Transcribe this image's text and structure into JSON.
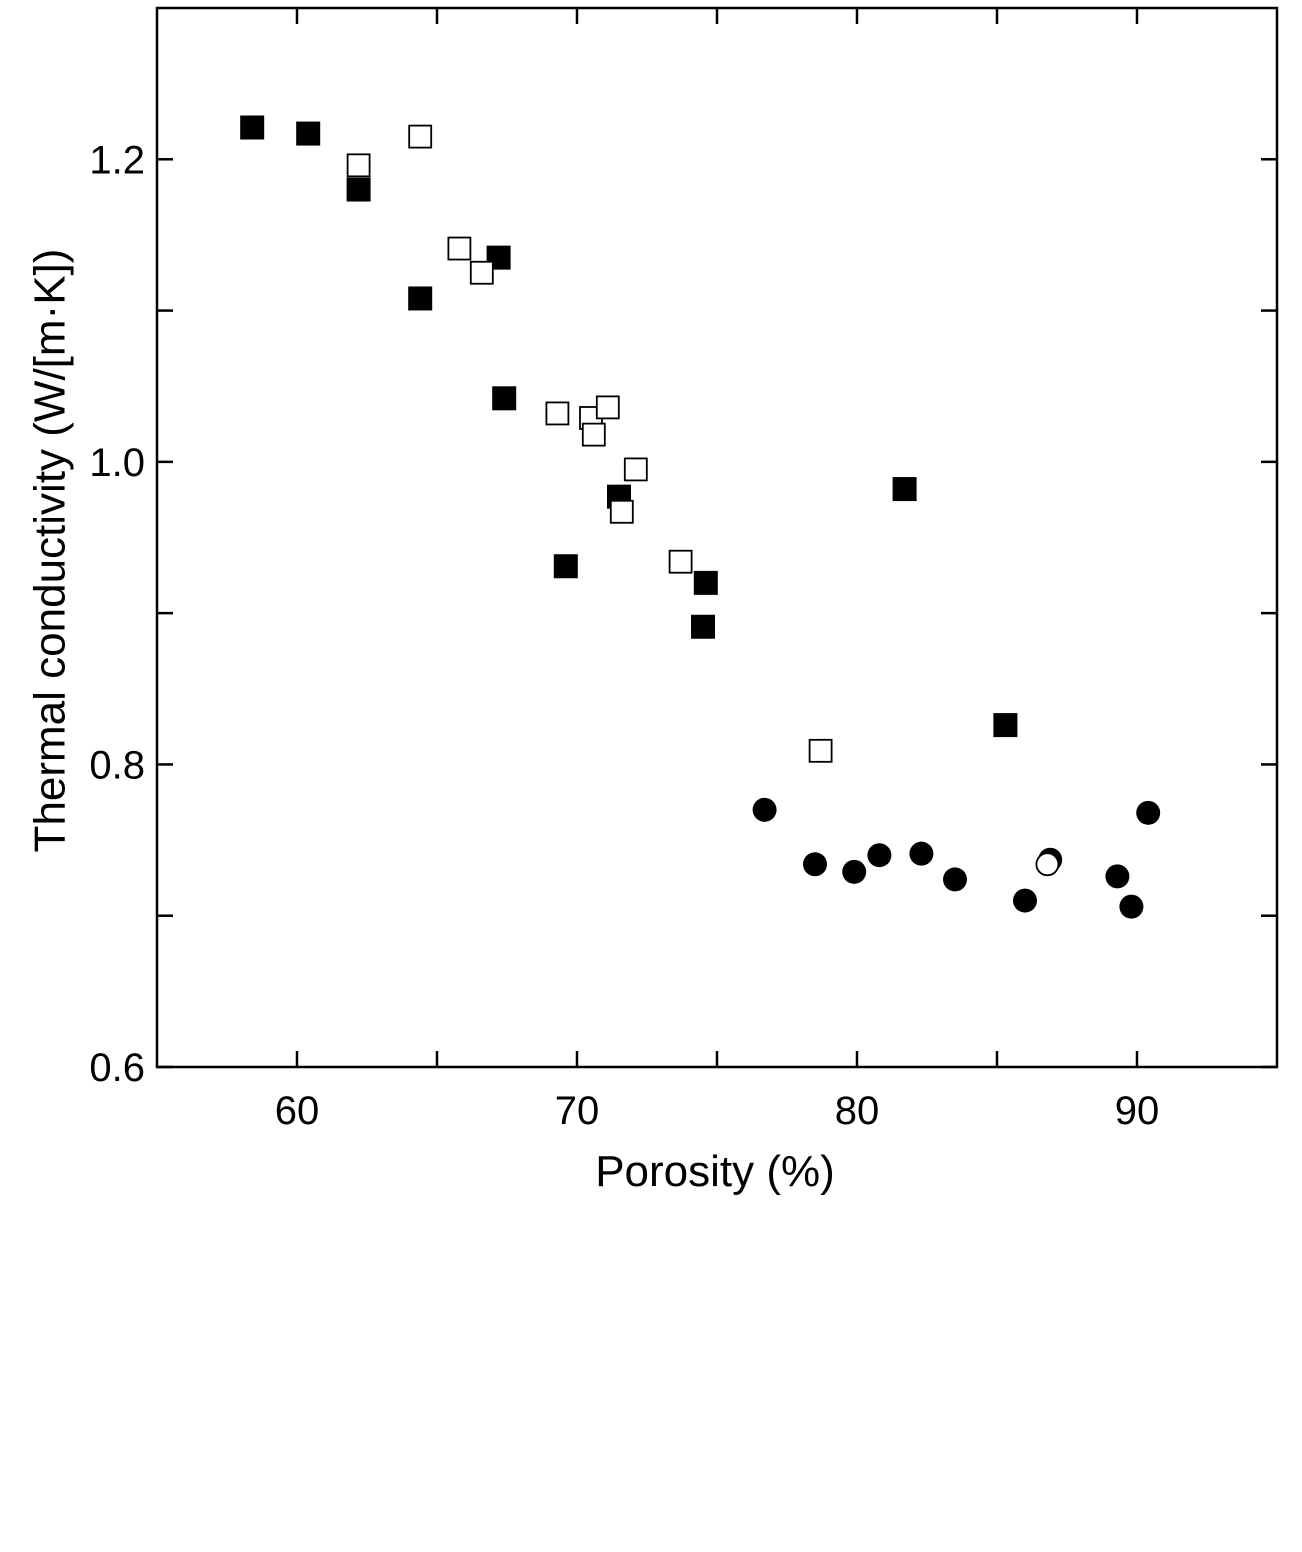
{
  "chart_data": {
    "type": "scatter",
    "title": "",
    "xlabel": "Porosity (%)",
    "ylabel": "Thermal conductivity (W/[m·K])",
    "xlim": [
      55,
      95
    ],
    "ylim": [
      0.6,
      1.3
    ],
    "x_ticks": [
      {
        "value": 60,
        "label": "60"
      },
      {
        "value": 70,
        "label": "70"
      },
      {
        "value": 80,
        "label": "80"
      },
      {
        "value": 90,
        "label": "90"
      }
    ],
    "x_minor_ticks": [
      65,
      75,
      85
    ],
    "y_ticks": [
      {
        "value": 0.6,
        "label": "0.6"
      },
      {
        "value": 0.8,
        "label": "0.8"
      },
      {
        "value": 1.0,
        "label": "1.0"
      },
      {
        "value": 1.2,
        "label": "1.2"
      }
    ],
    "y_minor_ticks": [
      0.7,
      0.9,
      1.1
    ],
    "grid": false,
    "legend": "none",
    "series": [
      {
        "marker": "square",
        "filled": true,
        "color": "#000000",
        "points": [
          {
            "x": 58.4,
            "y": 1.221
          },
          {
            "x": 60.4,
            "y": 1.217
          },
          {
            "x": 62.2,
            "y": 1.18
          },
          {
            "x": 64.4,
            "y": 1.108
          },
          {
            "x": 67.2,
            "y": 1.135
          },
          {
            "x": 67.4,
            "y": 1.042
          },
          {
            "x": 69.6,
            "y": 0.931
          },
          {
            "x": 71.5,
            "y": 0.977
          },
          {
            "x": 74.6,
            "y": 0.92
          },
          {
            "x": 74.5,
            "y": 0.891
          },
          {
            "x": 81.7,
            "y": 0.982
          },
          {
            "x": 85.3,
            "y": 0.826
          }
        ]
      },
      {
        "marker": "square",
        "filled": false,
        "color": "#000000",
        "points": [
          {
            "x": 62.2,
            "y": 1.196
          },
          {
            "x": 64.4,
            "y": 1.215
          },
          {
            "x": 65.8,
            "y": 1.141
          },
          {
            "x": 66.6,
            "y": 1.125
          },
          {
            "x": 69.3,
            "y": 1.032
          },
          {
            "x": 70.5,
            "y": 1.029
          },
          {
            "x": 70.6,
            "y": 1.018
          },
          {
            "x": 71.1,
            "y": 1.036
          },
          {
            "x": 72.1,
            "y": 0.995
          },
          {
            "x": 71.6,
            "y": 0.967
          },
          {
            "x": 73.7,
            "y": 0.934
          },
          {
            "x": 78.7,
            "y": 0.809
          }
        ]
      },
      {
        "marker": "circle",
        "filled": true,
        "color": "#000000",
        "points": [
          {
            "x": 76.7,
            "y": 0.77
          },
          {
            "x": 78.5,
            "y": 0.734
          },
          {
            "x": 79.9,
            "y": 0.729
          },
          {
            "x": 80.8,
            "y": 0.74
          },
          {
            "x": 82.3,
            "y": 0.741
          },
          {
            "x": 83.5,
            "y": 0.724
          },
          {
            "x": 86.0,
            "y": 0.71
          },
          {
            "x": 86.9,
            "y": 0.737
          },
          {
            "x": 89.3,
            "y": 0.726
          },
          {
            "x": 89.8,
            "y": 0.706
          },
          {
            "x": 90.4,
            "y": 0.768
          }
        ]
      },
      {
        "marker": "circle",
        "filled": false,
        "color": "#000000",
        "points": [
          {
            "x": 86.8,
            "y": 0.734
          }
        ]
      }
    ]
  }
}
